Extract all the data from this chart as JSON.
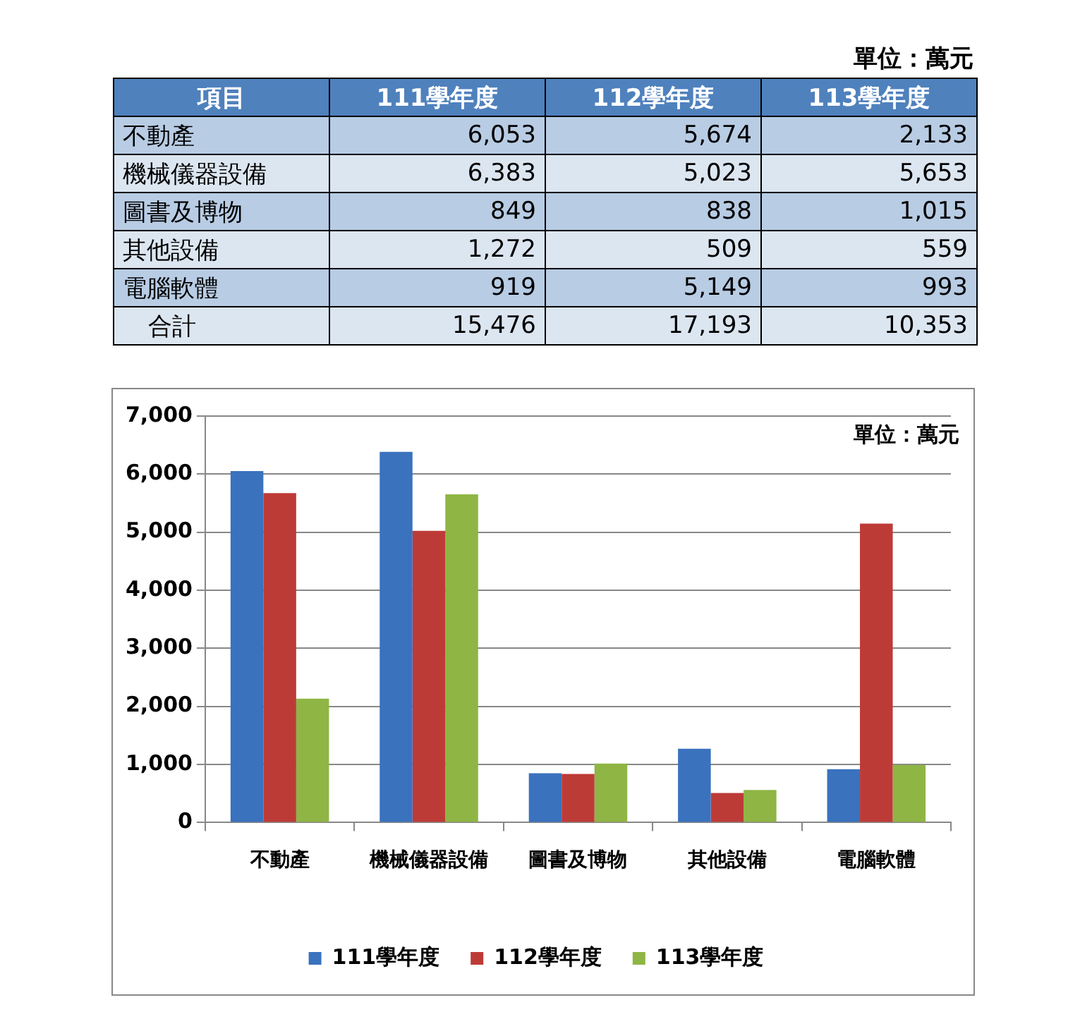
{
  "chart_data": [
    {
      "type": "other",
      "annotations": [
        "單位：萬元",
        "項目",
        "111學年度",
        "112學年度",
        "113學年度",
        "不動產",
        "6,053",
        "5,674",
        "2,133",
        "機械儀器設備",
        "6,383",
        "5,023",
        "5,653",
        "圖書及博物",
        "849",
        "838",
        "1,015",
        "其他設備",
        "1,272",
        "509",
        "559",
        "電腦軟體",
        "919",
        "5,149",
        "993",
        "合計",
        "15,476",
        "17,193",
        "10,353"
      ]
    },
    {
      "type": "bar",
      "categories": [
        "不動產",
        "機械儀器設備",
        "圖書及博物",
        "其他設備",
        "電腦軟體"
      ],
      "series": [
        {
          "name": "111學年度",
          "color": "#3a72be",
          "values": [
            6053,
            6383,
            849,
            1272,
            919
          ]
        },
        {
          "name": "112學年度",
          "color": "#bd3b37",
          "values": [
            5674,
            5023,
            838,
            509,
            5149
          ]
        },
        {
          "name": "113學年度",
          "color": "#8fb545",
          "values": [
            2133,
            5653,
            1015,
            559,
            993
          ]
        }
      ],
      "ylim": [
        0,
        7000
      ],
      "yticks": [
        0,
        {
          "value": 1000,
          "label": "1,000"
        },
        {
          "value": 2000,
          "label": "2,000"
        },
        {
          "value": 3000,
          "label": "3,000"
        },
        {
          "value": 4000,
          "label": "4,000"
        },
        {
          "value": 5000,
          "label": "5,000"
        },
        {
          "value": 6000,
          "label": "6,000"
        },
        {
          "value": 7000,
          "label": "7,000"
        }
      ],
      "grid": "y",
      "legend": "bottom",
      "annotations": [
        "單位：萬元"
      ]
    }
  ]
}
